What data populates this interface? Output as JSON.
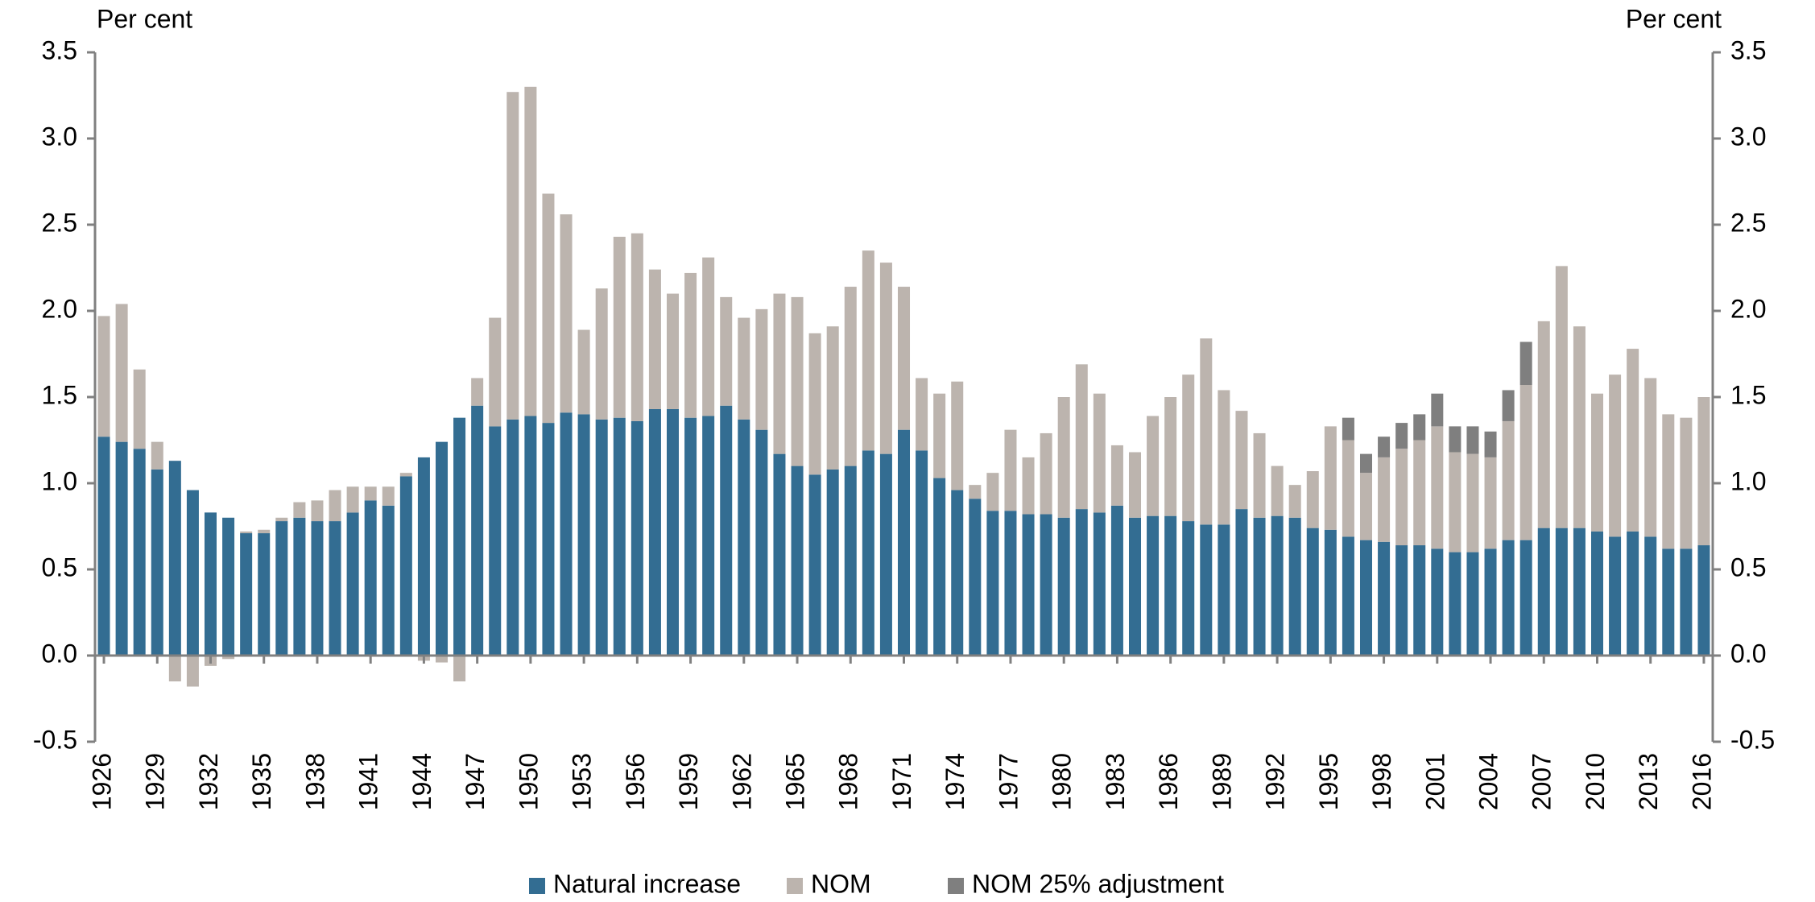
{
  "chart_data": {
    "type": "bar",
    "stacked": true,
    "y_label": "Per cent",
    "y2_label": "Per cent",
    "categories": [
      "1926",
      null,
      null,
      "1929",
      null,
      null,
      "1932",
      null,
      null,
      "1935",
      null,
      null,
      "1938",
      null,
      null,
      "1941",
      null,
      null,
      "1944",
      null,
      null,
      "1947",
      null,
      null,
      "1950",
      null,
      null,
      "1953",
      null,
      null,
      "1956",
      null,
      null,
      "1959",
      null,
      null,
      "1962",
      null,
      null,
      "1965",
      null,
      null,
      "1968",
      null,
      null,
      "1971",
      null,
      null,
      "1974",
      null,
      null,
      "1977",
      null,
      null,
      "1980",
      null,
      null,
      "1983",
      null,
      null,
      "1986",
      null,
      null,
      "1989",
      null,
      null,
      "1992",
      null,
      null,
      "1995",
      null,
      null,
      "1998",
      null,
      null,
      "2001",
      null,
      null,
      "2004",
      null,
      null,
      "2007",
      null,
      null,
      "2010",
      null,
      null,
      "2013",
      null,
      null,
      "2016"
    ],
    "series": [
      {
        "name": "Natural increase",
        "color": "#336d92",
        "values": [
          1.27,
          1.24,
          1.2,
          1.08,
          1.13,
          0.96,
          0.83,
          0.8,
          0.71,
          0.71,
          0.78,
          0.8,
          0.78,
          0.78,
          0.83,
          0.9,
          0.87,
          1.04,
          1.15,
          1.24,
          1.38,
          1.45,
          1.33,
          1.37,
          1.39,
          1.35,
          1.41,
          1.4,
          1.37,
          1.38,
          1.36,
          1.43,
          1.43,
          1.38,
          1.39,
          1.45,
          1.37,
          1.31,
          1.17,
          1.1,
          1.05,
          1.08,
          1.1,
          1.19,
          1.17,
          1.31,
          1.19,
          1.03,
          0.96,
          0.91,
          0.84,
          0.84,
          0.82,
          0.82,
          0.8,
          0.85,
          0.83,
          0.87,
          0.8,
          0.81,
          0.81,
          0.78,
          0.76,
          0.76,
          0.85,
          0.8,
          0.81,
          0.8,
          0.74,
          0.73,
          0.69,
          0.67,
          0.66,
          0.64,
          0.64,
          0.62,
          0.6,
          0.6,
          0.62,
          0.67,
          0.67,
          0.74,
          0.74,
          0.74,
          0.72,
          0.69,
          0.72,
          0.69,
          0.62,
          0.62,
          0.64
        ]
      },
      {
        "name": "NOM",
        "color": "#bcb4ae",
        "values": [
          0.7,
          0.8,
          0.46,
          0.16,
          -0.15,
          -0.18,
          -0.06,
          -0.02,
          0.01,
          0.02,
          0.02,
          0.09,
          0.12,
          0.18,
          0.15,
          0.08,
          0.11,
          0.02,
          -0.03,
          -0.04,
          -0.15,
          0.16,
          0.63,
          1.9,
          1.91,
          1.33,
          1.15,
          0.49,
          0.76,
          1.05,
          1.09,
          0.81,
          0.67,
          0.84,
          0.92,
          0.63,
          0.59,
          0.7,
          0.93,
          0.98,
          0.82,
          0.83,
          1.04,
          1.16,
          1.11,
          0.83,
          0.42,
          0.49,
          0.63,
          0.08,
          0.22,
          0.47,
          0.33,
          0.47,
          0.7,
          0.84,
          0.69,
          0.35,
          0.38,
          0.58,
          0.69,
          0.85,
          1.08,
          0.78,
          0.57,
          0.49,
          0.29,
          0.19,
          0.33,
          0.6,
          0.56,
          0.39,
          0.49,
          0.56,
          0.61,
          0.71,
          0.58,
          0.57,
          0.53,
          0.69,
          0.9,
          1.2,
          1.52,
          1.17,
          0.8,
          0.94,
          1.06,
          0.92,
          0.78,
          0.76,
          0.86
        ]
      },
      {
        "name": "NOM 25% adjustment",
        "color": "#7f7f7f",
        "values": [
          null,
          null,
          null,
          null,
          null,
          null,
          null,
          null,
          null,
          null,
          null,
          null,
          null,
          null,
          null,
          null,
          null,
          null,
          null,
          null,
          null,
          null,
          null,
          null,
          null,
          null,
          null,
          null,
          null,
          null,
          null,
          null,
          null,
          null,
          null,
          null,
          null,
          null,
          null,
          null,
          null,
          null,
          null,
          null,
          null,
          null,
          null,
          null,
          null,
          null,
          null,
          null,
          null,
          null,
          null,
          null,
          null,
          null,
          null,
          null,
          null,
          null,
          null,
          null,
          null,
          null,
          null,
          null,
          null,
          null,
          0.13,
          0.11,
          0.12,
          0.15,
          0.15,
          0.19,
          0.15,
          0.16,
          0.15,
          0.18,
          0.25,
          null,
          null,
          null,
          null,
          null,
          null,
          null,
          null,
          null,
          null
        ]
      }
    ],
    "ylim": [
      -0.5,
      3.5
    ],
    "yticks": [
      {
        "value": -0.5,
        "label": "-0.5"
      },
      {
        "value": 0,
        "label": "0.0"
      },
      {
        "value": 0.5,
        "label": "0.5"
      },
      {
        "value": 1,
        "label": "1.0"
      },
      {
        "value": 1.5,
        "label": "1.5"
      },
      {
        "value": 2,
        "label": "2.0"
      },
      {
        "value": 2.5,
        "label": "2.5"
      },
      {
        "value": 3,
        "label": "3.0"
      },
      {
        "value": 3.5,
        "label": "3.5"
      }
    ],
    "y2lim": [
      -0.5,
      3.5
    ],
    "y2ticks": [
      {
        "value": -0.5,
        "label": "-0.5"
      },
      {
        "value": 0,
        "label": "0.0"
      },
      {
        "value": 0.5,
        "label": "0.5"
      },
      {
        "value": 1,
        "label": "1.0"
      },
      {
        "value": 1.5,
        "label": "1.5"
      },
      {
        "value": 2,
        "label": "2.0"
      },
      {
        "value": 2.5,
        "label": "2.5"
      },
      {
        "value": 3,
        "label": "3.0"
      },
      {
        "value": 3.5,
        "label": "3.5"
      }
    ],
    "legend": "bottom",
    "grid": false
  }
}
